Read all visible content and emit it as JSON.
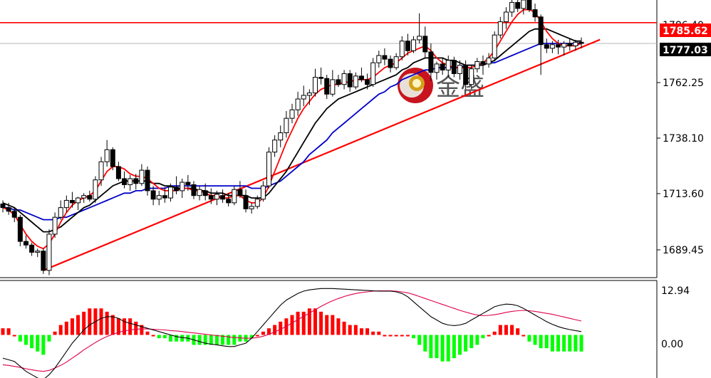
{
  "chart_data": [
    {
      "type": "candlestick",
      "panel": "price",
      "y_ticks": [
        "1689.45",
        "1713.60",
        "1738.10",
        "1762.25"
      ],
      "ylim": [
        1680.0,
        1795.0
      ],
      "hlines": [
        {
          "value": 1785.62,
          "label": "1785.62",
          "color": "#ff0000"
        },
        {
          "value": 1777.03,
          "label": "1777.03",
          "color": "#000000"
        }
      ],
      "top_partial_label": "1786.40",
      "candles": [
        [
          1710.5,
          1712.0,
          1707.0,
          1709.0
        ],
        [
          1709.0,
          1711.0,
          1706.0,
          1707.5
        ],
        [
          1707.5,
          1709.0,
          1703.0,
          1705.0
        ],
        [
          1705.0,
          1706.0,
          1693.0,
          1695.0
        ],
        [
          1695.0,
          1697.5,
          1692.0,
          1693.5
        ],
        [
          1693.5,
          1694.5,
          1689.0,
          1690.5
        ],
        [
          1690.5,
          1692.0,
          1688.5,
          1691.0
        ],
        [
          1691.0,
          1692.0,
          1681.5,
          1683.0
        ],
        [
          1683.0,
          1700.0,
          1681.0,
          1698.0
        ],
        [
          1698.0,
          1707.0,
          1696.5,
          1705.0
        ],
        [
          1705.0,
          1712.0,
          1704.0,
          1709.0
        ],
        [
          1709.0,
          1714.0,
          1707.0,
          1712.0
        ],
        [
          1712.0,
          1715.5,
          1709.0,
          1711.0
        ],
        [
          1711.0,
          1713.5,
          1708.0,
          1713.0
        ],
        [
          1713.0,
          1715.0,
          1711.0,
          1714.0
        ],
        [
          1714.0,
          1716.0,
          1711.5,
          1712.5
        ],
        [
          1712.5,
          1722.0,
          1711.0,
          1720.5
        ],
        [
          1720.5,
          1730.0,
          1718.0,
          1728.0
        ],
        [
          1728.0,
          1737.0,
          1726.0,
          1733.0
        ],
        [
          1733.0,
          1734.0,
          1724.5,
          1726.0
        ],
        [
          1726.0,
          1728.0,
          1720.0,
          1721.0
        ],
        [
          1721.0,
          1724.0,
          1717.0,
          1718.5
        ],
        [
          1718.5,
          1722.5,
          1716.0,
          1721.0
        ],
        [
          1721.0,
          1723.0,
          1716.5,
          1719.0
        ],
        [
          1719.0,
          1727.0,
          1718.0,
          1724.5
        ],
        [
          1724.5,
          1726.0,
          1714.0,
          1716.0
        ],
        [
          1716.0,
          1718.0,
          1710.0,
          1712.5
        ],
        [
          1712.5,
          1716.0,
          1710.0,
          1714.0
        ],
        [
          1714.0,
          1717.5,
          1711.0,
          1713.0
        ],
        [
          1713.0,
          1719.0,
          1711.5,
          1717.5
        ],
        [
          1717.5,
          1722.0,
          1714.5,
          1716.0
        ],
        [
          1716.0,
          1721.0,
          1713.0,
          1719.5
        ],
        [
          1719.5,
          1722.5,
          1716.0,
          1718.5
        ],
        [
          1718.5,
          1720.0,
          1712.5,
          1714.0
        ],
        [
          1714.0,
          1718.0,
          1712.0,
          1716.5
        ],
        [
          1716.0,
          1719.0,
          1712.0,
          1714.0
        ],
        [
          1714.0,
          1717.0,
          1710.5,
          1712.5
        ],
        [
          1712.5,
          1716.0,
          1710.0,
          1714.5
        ],
        [
          1714.0,
          1716.5,
          1711.0,
          1712.5
        ],
        [
          1712.5,
          1715.0,
          1709.5,
          1711.0
        ],
        [
          1711.0,
          1718.0,
          1710.0,
          1716.5
        ],
        [
          1716.5,
          1720.0,
          1713.0,
          1714.0
        ],
        [
          1714.0,
          1716.5,
          1707.0,
          1708.5
        ],
        [
          1708.5,
          1711.0,
          1706.5,
          1709.5
        ],
        [
          1709.5,
          1714.0,
          1708.5,
          1712.5
        ],
        [
          1712.5,
          1720.0,
          1711.5,
          1718.0
        ],
        [
          1718.0,
          1734.0,
          1717.0,
          1732.0
        ],
        [
          1732.0,
          1739.0,
          1730.0,
          1737.0
        ],
        [
          1737.0,
          1743.0,
          1734.0,
          1740.0
        ],
        [
          1740.0,
          1749.0,
          1738.0,
          1746.0
        ],
        [
          1746.0,
          1752.0,
          1744.0,
          1749.5
        ],
        [
          1749.5,
          1757.0,
          1747.0,
          1754.0
        ],
        [
          1754.0,
          1759.5,
          1751.0,
          1755.5
        ],
        [
          1755.5,
          1758.0,
          1751.5,
          1756.5
        ],
        [
          1756.5,
          1766.5,
          1755.0,
          1763.0
        ],
        [
          1763.0,
          1767.0,
          1760.0,
          1762.5
        ],
        [
          1762.5,
          1764.0,
          1754.0,
          1756.0
        ],
        [
          1756.0,
          1766.0,
          1755.0,
          1762.0
        ],
        [
          1762.0,
          1764.0,
          1759.0,
          1760.0
        ],
        [
          1760.0,
          1766.0,
          1758.0,
          1764.5
        ],
        [
          1764.5,
          1766.0,
          1757.0,
          1759.0
        ],
        [
          1759.0,
          1765.0,
          1758.0,
          1763.5
        ],
        [
          1763.5,
          1767.0,
          1761.0,
          1762.0
        ],
        [
          1762.0,
          1764.5,
          1758.0,
          1760.0
        ],
        [
          1760.0,
          1771.0,
          1759.0,
          1769.0
        ],
        [
          1769.0,
          1774.0,
          1767.0,
          1772.0
        ],
        [
          1772.0,
          1775.0,
          1768.0,
          1770.5
        ],
        [
          1770.5,
          1772.0,
          1765.0,
          1767.0
        ],
        [
          1767.0,
          1773.0,
          1766.0,
          1771.5
        ],
        [
          1771.5,
          1780.0,
          1770.0,
          1778.0
        ],
        [
          1778.0,
          1781.0,
          1772.0,
          1774.0
        ],
        [
          1774.0,
          1780.0,
          1773.0,
          1778.5
        ],
        [
          1778.5,
          1789.5,
          1777.0,
          1780.0
        ],
        [
          1780.0,
          1784.0,
          1771.0,
          1773.5
        ],
        [
          1773.5,
          1777.0,
          1761.5,
          1765.0
        ],
        [
          1765.0,
          1769.5,
          1762.0,
          1768.5
        ],
        [
          1768.5,
          1771.0,
          1764.0,
          1766.0
        ],
        [
          1766.0,
          1772.0,
          1763.0,
          1770.0
        ],
        [
          1770.0,
          1771.5,
          1763.0,
          1764.5
        ],
        [
          1764.5,
          1770.0,
          1762.0,
          1768.0
        ],
        [
          1768.0,
          1770.0,
          1758.0,
          1760.0
        ],
        [
          1760.0,
          1768.0,
          1758.0,
          1766.5
        ],
        [
          1766.5,
          1771.0,
          1765.0,
          1769.5
        ],
        [
          1769.5,
          1772.0,
          1764.0,
          1768.5
        ],
        [
          1768.5,
          1773.0,
          1767.0,
          1771.0
        ],
        [
          1771.0,
          1782.0,
          1769.5,
          1780.5
        ],
        [
          1780.5,
          1788.0,
          1779.0,
          1786.0
        ],
        [
          1786.0,
          1792.0,
          1783.0,
          1790.0
        ],
        [
          1790.0,
          1796.0,
          1788.0,
          1794.0
        ],
        [
          1794.0,
          1797.5,
          1790.0,
          1791.5
        ],
        [
          1791.5,
          1796.0,
          1789.0,
          1795.0
        ],
        [
          1795.0,
          1796.5,
          1790.0,
          1791.0
        ],
        [
          1791.0,
          1793.5,
          1786.0,
          1788.0
        ],
        [
          1788.0,
          1789.0,
          1764.0,
          1776.5
        ],
        [
          1776.5,
          1779.0,
          1773.0,
          1775.0
        ],
        [
          1775.0,
          1778.0,
          1773.0,
          1776.5
        ],
        [
          1776.5,
          1778.5,
          1772.5,
          1775.5
        ],
        [
          1775.5,
          1778.0,
          1772.0,
          1777.0
        ],
        [
          1777.0,
          1779.0,
          1774.0,
          1776.0
        ],
        [
          1776.0,
          1778.5,
          1774.0,
          1777.5
        ],
        [
          1777.5,
          1779.5,
          1775.0,
          1777.0
        ]
      ],
      "ma_red": [
        1709,
        1708,
        1706,
        1702,
        1698,
        1695,
        1693,
        1692,
        1694,
        1698,
        1703,
        1707,
        1710,
        1712,
        1713,
        1714,
        1716,
        1720,
        1724,
        1726,
        1726,
        1725,
        1723,
        1722,
        1722,
        1721,
        1719,
        1717,
        1716,
        1716,
        1716,
        1717,
        1717,
        1716,
        1716,
        1715,
        1714,
        1714,
        1713,
        1713,
        1714,
        1714,
        1712,
        1711,
        1711,
        1713,
        1718,
        1724,
        1730,
        1736,
        1741,
        1746,
        1750,
        1753,
        1756,
        1758,
        1759,
        1760,
        1760,
        1761,
        1761,
        1762,
        1762,
        1762,
        1763,
        1765,
        1767,
        1768,
        1769,
        1771,
        1773,
        1774,
        1775,
        1776,
        1774,
        1771,
        1769,
        1768,
        1767,
        1767,
        1767,
        1767,
        1768,
        1769,
        1771,
        1774,
        1778,
        1782,
        1786,
        1789,
        1791,
        1791,
        1790,
        1786,
        1782,
        1779,
        1777,
        1776,
        1776,
        1776,
        1777
      ],
      "ma_black": [
        1711,
        1710,
        1709,
        1707,
        1705,
        1703,
        1701,
        1699,
        1699,
        1700,
        1701,
        1703,
        1705,
        1707,
        1709,
        1710,
        1712,
        1714,
        1716,
        1718,
        1719,
        1720,
        1720,
        1720,
        1720,
        1720,
        1719,
        1719,
        1718,
        1718,
        1717,
        1717,
        1717,
        1717,
        1716,
        1716,
        1715,
        1715,
        1715,
        1714,
        1714,
        1714,
        1714,
        1713,
        1713,
        1713,
        1715,
        1718,
        1721,
        1724,
        1728,
        1732,
        1736,
        1740,
        1744,
        1747,
        1750,
        1752,
        1754,
        1755,
        1756,
        1757,
        1758,
        1759,
        1760,
        1761,
        1762,
        1763,
        1764,
        1766,
        1767,
        1769,
        1770,
        1771,
        1771,
        1771,
        1771,
        1770,
        1770,
        1769,
        1768,
        1768,
        1768,
        1768,
        1769,
        1770,
        1772,
        1774,
        1776,
        1778,
        1780,
        1782,
        1783,
        1783,
        1783,
        1782,
        1781,
        1780,
        1779,
        1778,
        1778
      ],
      "ma_blue": [
        1709,
        1709,
        1708,
        1708,
        1707,
        1706,
        1705,
        1704,
        1704,
        1704,
        1705,
        1705,
        1706,
        1707,
        1708,
        1709,
        1710,
        1711,
        1712,
        1713,
        1714,
        1715,
        1715,
        1716,
        1716,
        1717,
        1717,
        1717,
        1717,
        1718,
        1718,
        1718,
        1718,
        1718,
        1718,
        1718,
        1718,
        1718,
        1718,
        1718,
        1718,
        1718,
        1718,
        1717,
        1717,
        1717,
        1718,
        1719,
        1720,
        1722,
        1724,
        1726,
        1728,
        1731,
        1733,
        1735,
        1737,
        1740,
        1742,
        1744,
        1746,
        1748,
        1750,
        1752,
        1754,
        1756,
        1757,
        1759,
        1760,
        1762,
        1763,
        1764,
        1765,
        1766,
        1766,
        1767,
        1767,
        1767,
        1767,
        1767,
        1768,
        1768,
        1768,
        1768,
        1769,
        1769,
        1770,
        1771,
        1772,
        1773,
        1774,
        1775,
        1776,
        1777,
        1777,
        1777,
        1777,
        1777,
        1777,
        1777,
        1777
      ],
      "trendlines": [
        {
          "from": [
            7,
            1683.0
          ],
          "to": [
            102,
            1778.0
          ],
          "color": "#ff0000"
        }
      ]
    },
    {
      "type": "macd",
      "panel": "oscillator",
      "y_ticks": [
        "12.94",
        "0.00"
      ],
      "ylim": [
        -13.0,
        16.0
      ],
      "histogram": [
        2,
        2,
        0,
        -2,
        -3,
        -4,
        -5,
        -6,
        -2,
        1,
        3,
        4,
        5,
        6,
        7,
        8,
        8,
        8,
        7,
        6,
        5,
        5,
        5,
        4,
        3,
        1,
        0,
        -1,
        -1,
        -2,
        -2,
        -2,
        -2,
        -3,
        -3,
        -3,
        -3,
        -3,
        -3,
        -3,
        -3,
        -2,
        -2,
        -1,
        0,
        1,
        2,
        3,
        4,
        5,
        6,
        7,
        7,
        8,
        8,
        7,
        6,
        6,
        5,
        4,
        3,
        3,
        2,
        2,
        1,
        1,
        0,
        0,
        0,
        0,
        0,
        -1,
        -3,
        -5,
        -7,
        -7,
        -8,
        -8,
        -7,
        -6,
        -5,
        -4,
        -3,
        -1,
        0,
        1,
        3,
        3,
        3,
        2,
        0,
        -2,
        -3,
        -4,
        -4,
        -5,
        -5,
        -5,
        -5,
        -5,
        -5
      ],
      "signal": [
        -9.0,
        -9.2,
        -9.5,
        -9.8,
        -10.2,
        -10.5,
        -10.8,
        -11.0,
        -10.7,
        -10.0,
        -9.2,
        -8.2,
        -7.0,
        -5.8,
        -4.5,
        -3.4,
        -2.3,
        -1.3,
        -0.5,
        0.2,
        0.8,
        1.2,
        1.5,
        1.7,
        1.8,
        1.8,
        1.7,
        1.6,
        1.5,
        1.3,
        1.2,
        1.0,
        0.8,
        0.6,
        0.4,
        0.2,
        0.0,
        -0.2,
        -0.4,
        -0.6,
        -0.8,
        -0.9,
        -1.0,
        -1.0,
        -0.8,
        -0.4,
        0.2,
        0.9,
        1.7,
        2.6,
        3.6,
        4.6,
        5.6,
        6.6,
        7.6,
        8.6,
        9.5,
        10.3,
        11.0,
        11.6,
        12.1,
        12.5,
        12.8,
        13.0,
        13.2,
        13.3,
        13.3,
        13.3,
        13.2,
        13.0,
        12.7,
        12.2,
        11.6,
        11.0,
        10.4,
        9.8,
        9.2,
        8.6,
        8.0,
        7.4,
        6.9,
        6.4,
        6.0,
        5.8,
        5.9,
        6.1,
        6.4,
        6.8,
        7.1,
        7.3,
        7.4,
        7.3,
        7.1,
        6.8,
        6.5,
        6.2,
        5.8,
        5.4,
        5.0,
        4.6,
        4.2
      ],
      "macd": [
        -7.0,
        -7.5,
        -8.0,
        -9.5,
        -11.0,
        -12.0,
        -13.0,
        -13.5,
        -12.0,
        -10.0,
        -7.5,
        -5.0,
        -2.5,
        -0.5,
        1.5,
        3.0,
        4.0,
        5.0,
        5.5,
        5.5,
        5.0,
        4.0,
        3.5,
        3.0,
        2.5,
        2.0,
        1.5,
        1.0,
        0.5,
        0.0,
        -0.5,
        -0.8,
        -1.0,
        -1.5,
        -2.0,
        -2.5,
        -2.8,
        -3.0,
        -3.3,
        -3.5,
        -3.5,
        -3.0,
        -2.5,
        -1.0,
        1.0,
        3.0,
        5.0,
        7.0,
        9.0,
        10.5,
        11.5,
        12.5,
        13.2,
        13.6,
        13.8,
        14.0,
        14.0,
        14.0,
        13.9,
        13.8,
        13.7,
        13.6,
        13.5,
        13.4,
        13.3,
        13.2,
        13.2,
        13.2,
        13.0,
        12.5,
        11.5,
        10.0,
        8.5,
        7.0,
        5.5,
        4.5,
        3.5,
        3.0,
        2.8,
        3.0,
        3.5,
        4.5,
        5.5,
        6.5,
        7.5,
        8.5,
        9.0,
        9.3,
        9.2,
        8.8,
        8.0,
        7.0,
        6.0,
        5.0,
        4.0,
        3.2,
        2.5,
        2.0,
        1.6,
        1.3,
        1.0
      ]
    }
  ],
  "colors": {
    "bull_body": "#ffffff",
    "bear_body": "#000000",
    "ma_red": "#ff0000",
    "ma_black": "#000000",
    "ma_blue": "#0000c8",
    "hist_pos": "#ff0000",
    "hist_neg": "#00ff00",
    "macd_line": "#000000",
    "signal_line": "#e0004a"
  },
  "logo": {
    "text": "金盛",
    "icon": "jinsheng-logo-icon"
  }
}
